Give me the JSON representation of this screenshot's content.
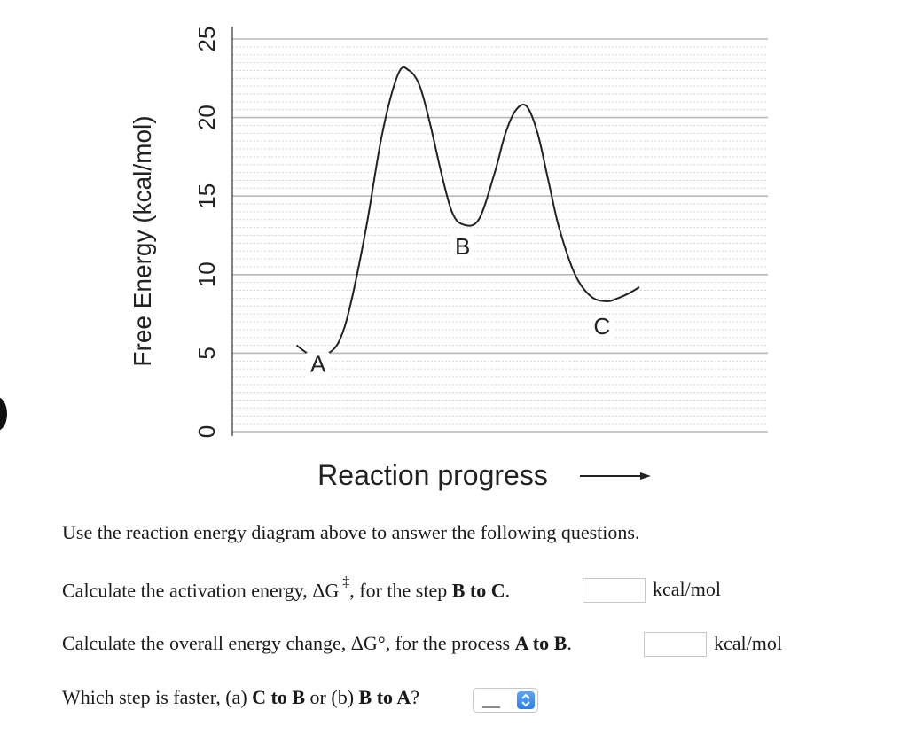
{
  "chart_data": {
    "type": "line",
    "title": "",
    "xlabel": "Reaction progress",
    "ylabel": "Free Energy (kcal/mol)",
    "ylim": [
      0,
      25
    ],
    "yticks": [
      0,
      5,
      10,
      15,
      20,
      25
    ],
    "grid": true,
    "x_range": [
      0,
      100
    ],
    "series": [
      {
        "x": [
          12,
          14,
          16,
          18,
          20,
          22,
          25,
          28,
          31,
          33,
          35,
          37,
          39,
          41,
          43,
          46,
          49,
          51,
          53,
          55,
          57,
          59,
          61,
          64,
          67,
          70,
          72,
          74,
          76
        ],
        "values": [
          5.5,
          5.0,
          4.8,
          5.0,
          5.8,
          8.0,
          13.0,
          19.0,
          22.8,
          23.0,
          22.0,
          19.5,
          16.5,
          14.0,
          13.2,
          13.5,
          16.5,
          19.0,
          20.5,
          20.7,
          19.0,
          16.0,
          13.0,
          10.0,
          8.6,
          8.3,
          8.5,
          8.8,
          9.2
        ]
      }
    ],
    "annotations": [
      {
        "text": "A",
        "x": 16,
        "y": 3.8
      },
      {
        "text": "B",
        "x": 43,
        "y": 11.3
      },
      {
        "text": "C",
        "x": 69,
        "y": 6.2
      }
    ]
  },
  "questions": {
    "intro": "Use the reaction energy diagram above to answer the following questions.",
    "q1_before": "Calculate the activation energy, ΔG",
    "q1_symbol": "‡",
    "q1_middle": ", for the step ",
    "q1_bold": "B to C",
    "q1_after": ".",
    "q1_unit": "kcal/mol",
    "q1_value": "",
    "q2_before": "Calculate the overall energy change, ΔG°, for the process ",
    "q2_bold": "A to B",
    "q2_after": ".",
    "q2_unit": "kcal/mol",
    "q2_value": "",
    "q3_before": "Which step is faster, (a) ",
    "q3_bold1": "C to B",
    "q3_middle": " or (b) ",
    "q3_bold2": "B to A",
    "q3_after": "?",
    "q3_selected": "__"
  }
}
